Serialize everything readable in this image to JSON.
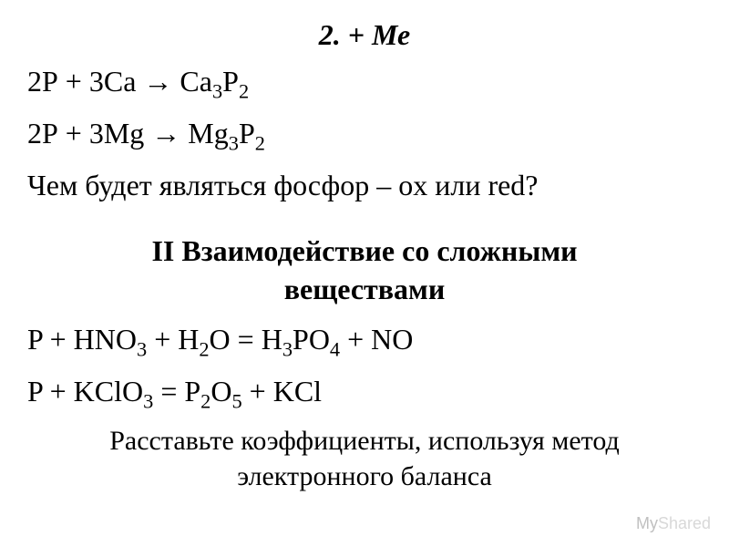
{
  "heading": "2. + Ме",
  "eq1_left": "2Р + 3Са → Са",
  "eq1_sub1": "3",
  "eq1_mid": "Р",
  "eq1_sub2": "2",
  "eq2_left": "2Р + 3Mg → Mg",
  "eq2_sub1": "3",
  "eq2_mid": "Р",
  "eq2_sub2": "2",
  "question": "Чем будет являться фосфор – ox или red?",
  "section_title_l1": "II Взаимодействие со сложными",
  "section_title_l2": "веществами",
  "eq3_a": "P + HNO",
  "eq3_sub1": "3",
  "eq3_b": " + H",
  "eq3_sub2": "2",
  "eq3_c": "O = H",
  "eq3_sub3": "3",
  "eq3_d": "PO",
  "eq3_sub4": "4",
  "eq3_e": " + NO",
  "eq4_a": "P + KClO",
  "eq4_sub1": "3",
  "eq4_b": " = P",
  "eq4_sub2": "2",
  "eq4_c": "O",
  "eq4_sub3": "5",
  "eq4_d": " + KCl",
  "task_l1": "Расставьте коэффициенты, используя метод",
  "task_l2": "электронного баланса",
  "watermark_my": "My",
  "watermark_shared": "Shared",
  "colors": {
    "background": "#ffffff",
    "text": "#000000",
    "watermark_dark": "#c0c0c0",
    "watermark_light": "#d8d8d8"
  },
  "typography": {
    "font_family": "Times New Roman",
    "heading_size": 32,
    "body_size": 32,
    "task_size": 30,
    "watermark_size": 18
  }
}
